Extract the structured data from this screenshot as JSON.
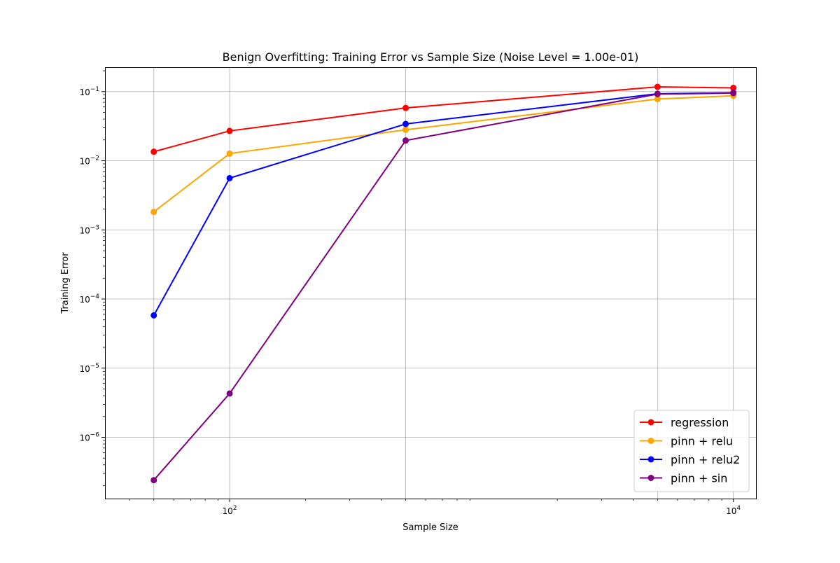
{
  "chart_data": {
    "type": "line",
    "title": "Benign Overfitting: Training Error vs Sample Size (Noise Level = 1.00e-01)",
    "xlabel": "Sample Size",
    "ylabel": "Training Error",
    "xscale": "log",
    "yscale": "log",
    "xlim": [
      32,
      12300
    ],
    "ylim": [
      1.3e-07,
      0.225
    ],
    "grid": true,
    "legend_position": "bottom-right",
    "x": [
      50,
      100,
      500,
      5000,
      10000
    ],
    "x_major_ticks": [
      {
        "value": 100,
        "base": "10",
        "exp": "2"
      },
      {
        "value": 10000,
        "base": "10",
        "exp": "4"
      }
    ],
    "y_major_ticks": [
      {
        "value": 1e-06,
        "base": "10",
        "exp": "−6"
      },
      {
        "value": 1e-05,
        "base": "10",
        "exp": "−5"
      },
      {
        "value": 0.0001,
        "base": "10",
        "exp": "−4"
      },
      {
        "value": 0.001,
        "base": "10",
        "exp": "−3"
      },
      {
        "value": 0.01,
        "base": "10",
        "exp": "−2"
      },
      {
        "value": 0.1,
        "base": "10",
        "exp": "−1"
      }
    ],
    "series": [
      {
        "name": "regression",
        "color": "#ff0000",
        "values": [
          0.0135,
          0.027,
          0.058,
          0.117,
          0.113
        ]
      },
      {
        "name": "pinn + relu",
        "color": "#ffa500",
        "values": [
          0.00182,
          0.0127,
          0.028,
          0.078,
          0.087
        ]
      },
      {
        "name": "pinn + relu2",
        "color": "#0000ff",
        "values": [
          5.8e-05,
          0.0056,
          0.034,
          0.093,
          0.096
        ]
      },
      {
        "name": "pinn + sin",
        "color": "#800080",
        "values": [
          2.4e-07,
          4.3e-06,
          0.0196,
          0.092,
          0.095
        ]
      }
    ]
  }
}
